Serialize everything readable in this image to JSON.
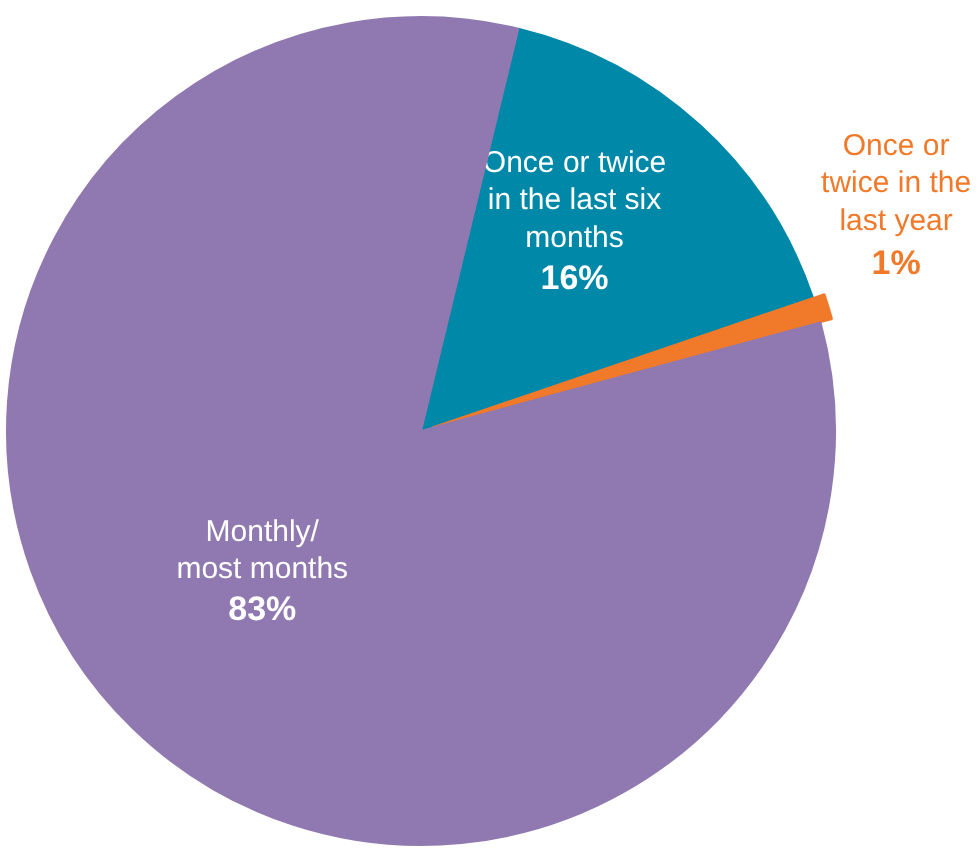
{
  "chart_data": {
    "type": "pie",
    "categories": [
      "Once or twice in the last six months",
      "Once or twice in the last year",
      "Monthly/ most months"
    ],
    "values": [
      16,
      1,
      83
    ],
    "colors": [
      "#0088a8",
      "#f07a2a",
      "#9079b0"
    ],
    "value_labels": [
      "16%",
      "1%",
      "83%"
    ]
  }
}
